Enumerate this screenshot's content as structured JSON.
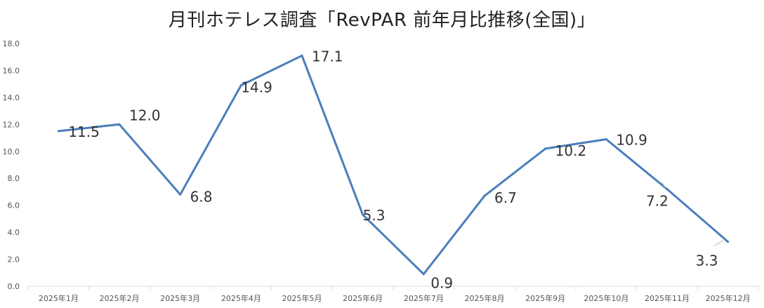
{
  "chart_data": {
    "type": "line",
    "title": "月刊ホテレス調査「RevPAR 前年月比推移(全国)」",
    "xlabel": "",
    "ylabel": "",
    "categories": [
      "2025年1月",
      "2025年2月",
      "2025年3月",
      "2025年4月",
      "2025年5月",
      "2025年6月",
      "2025年7月",
      "2025年8月",
      "2025年9月",
      "2025年10月",
      "2025年11月",
      "2025年12月"
    ],
    "series": [
      {
        "values": [
          11.5,
          12.0,
          6.8,
          14.9,
          17.1,
          5.3,
          0.9,
          6.7,
          10.2,
          10.9,
          7.2,
          3.3
        ]
      }
    ],
    "data_labels": [
      "11.5",
      "12.0",
      "6.8",
      "14.9",
      "17.1",
      "5.3",
      "0.9",
      "6.7",
      "10.2",
      "10.9",
      "7.2",
      "3.3"
    ],
    "ylim": [
      0,
      18
    ],
    "yticks": [
      "0.0",
      "2.0",
      "4.0",
      "6.0",
      "8.0",
      "10.0",
      "12.0",
      "14.0",
      "16.0",
      "18.0"
    ],
    "grid": false,
    "legend": "none",
    "line_color": "#4a7ebb",
    "axis_color": "#d9d9d9"
  }
}
